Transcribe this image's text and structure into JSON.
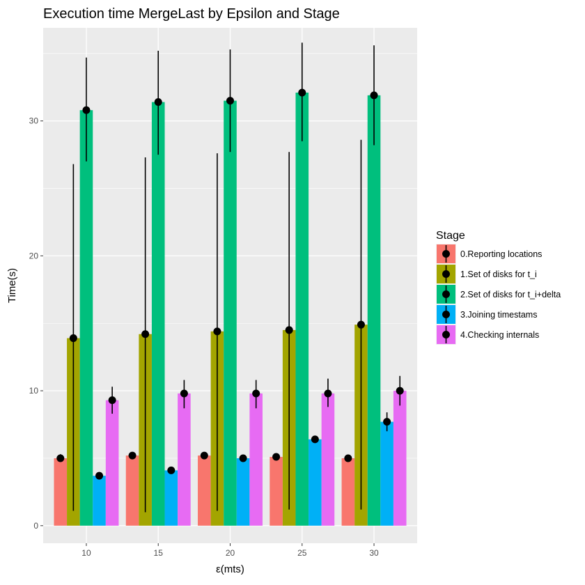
{
  "chart_data": {
    "type": "bar",
    "title": "Execution time MergeLast by Epsilon and Stage",
    "xlabel": "ε(mts)",
    "ylabel": "Time(s)",
    "categories": [
      "10",
      "15",
      "20",
      "25",
      "30"
    ],
    "ylim": [
      -1.3,
      36.9
    ],
    "yticks": [
      0,
      10,
      20,
      30
    ],
    "grid": true,
    "legend_title": "Stage",
    "legend_position": "right",
    "background": "#ebebeb",
    "series": [
      {
        "name": "0.Reporting locations",
        "color": "#F8766D",
        "values": [
          5.0,
          5.2,
          5.2,
          5.1,
          5.0
        ],
        "err_low": [
          4.8,
          5.0,
          5.0,
          4.9,
          4.8
        ],
        "err_high": [
          5.3,
          5.4,
          5.4,
          5.3,
          5.2
        ]
      },
      {
        "name": "1.Set of disks for t_i",
        "color": "#A3A500",
        "values": [
          13.9,
          14.2,
          14.4,
          14.5,
          14.9
        ],
        "err_low": [
          1.1,
          1.0,
          1.1,
          1.2,
          1.2
        ],
        "err_high": [
          26.8,
          27.3,
          27.6,
          27.7,
          28.6
        ]
      },
      {
        "name": "2.Set of disks for t_i+delta",
        "color": "#00BF7D",
        "values": [
          30.8,
          31.4,
          31.5,
          32.1,
          31.9
        ],
        "err_low": [
          27.0,
          27.5,
          27.7,
          28.5,
          28.2
        ],
        "err_high": [
          34.7,
          35.2,
          35.3,
          35.8,
          35.6
        ]
      },
      {
        "name": "3.Joining timestams",
        "color": "#00B0F6",
        "values": [
          3.7,
          4.1,
          5.0,
          6.4,
          7.7
        ],
        "err_low": [
          3.6,
          4.0,
          4.9,
          6.2,
          7.0
        ],
        "err_high": [
          3.9,
          4.3,
          5.1,
          6.6,
          8.4
        ]
      },
      {
        "name": "4.Checking internals",
        "color": "#E76BF3",
        "values": [
          9.3,
          9.8,
          9.8,
          9.8,
          10.0
        ],
        "err_low": [
          8.3,
          8.7,
          8.7,
          8.8,
          8.9
        ],
        "err_high": [
          10.3,
          10.8,
          10.8,
          10.9,
          11.1
        ]
      }
    ]
  }
}
